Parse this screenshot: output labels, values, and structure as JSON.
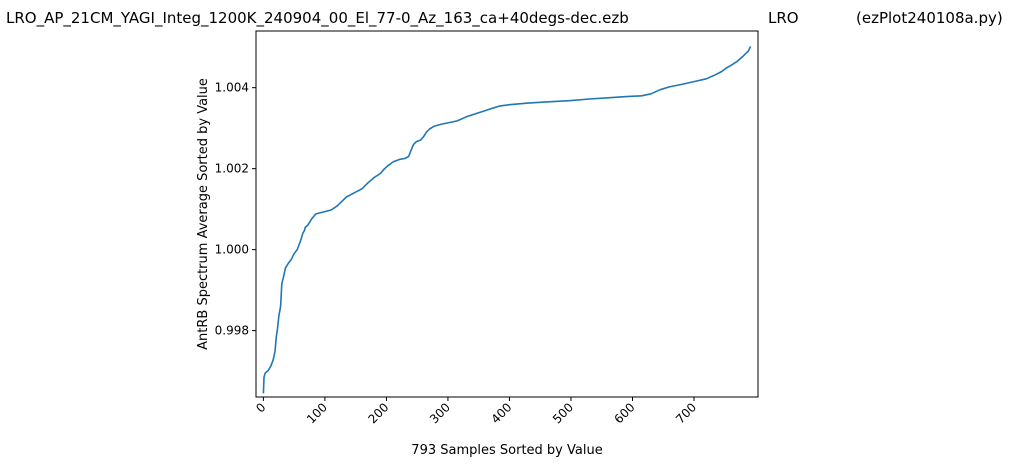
{
  "header": {
    "left": "LRO_AP_21CM_YAGI_Integ_1200K_240904_00_El_77-0_Az_163_ca+40degs-dec.ezb",
    "center": "LRO",
    "right": "(ezPlot240108a.py)"
  },
  "chart_data": {
    "type": "line",
    "title": "",
    "xlabel": "793 Samples Sorted by Value",
    "ylabel": "AntRB Spectrum Average Sorted by Value",
    "xlim": [
      -12,
      804
    ],
    "ylim": [
      0.99636,
      1.0054
    ],
    "xticks": [
      0,
      100,
      200,
      300,
      400,
      500,
      600,
      700
    ],
    "xtick_labels": [
      "0",
      "100",
      "200",
      "300",
      "400",
      "500",
      "600",
      "700"
    ],
    "yticks": [
      0.998,
      1.0,
      1.002,
      1.004
    ],
    "ytick_labels": [
      "0.998",
      "1.000",
      "1.002",
      "1.004"
    ],
    "grid": false,
    "colors": {
      "line": "#1f77b4"
    },
    "series": [
      {
        "x": [
          0,
          1,
          3,
          8,
          12,
          16,
          19,
          21,
          23,
          25,
          28,
          30,
          33,
          36,
          40,
          45,
          50,
          55,
          60,
          64,
          67,
          68,
          72,
          78,
          85,
          95,
          110,
          120,
          135,
          150,
          160,
          170,
          180,
          190,
          197,
          203,
          207,
          210,
          213,
          216,
          222,
          230,
          236,
          240,
          244,
          249,
          255,
          260,
          265,
          270,
          278,
          290,
          300,
          315,
          330,
          350,
          370,
          385,
          400,
          430,
          460,
          500,
          530,
          560,
          590,
          615,
          630,
          645,
          660,
          680,
          700,
          720,
          735,
          745,
          752,
          760,
          770,
          780,
          788,
          792
        ],
        "y": [
          0.99645,
          0.99685,
          0.99695,
          0.99702,
          0.99712,
          0.99728,
          0.9975,
          0.99785,
          0.99805,
          0.99835,
          0.9986,
          0.99915,
          0.99935,
          0.99955,
          0.99965,
          0.99975,
          0.9999,
          1.0,
          1.0002,
          1.0004,
          1.00048,
          1.00055,
          1.0006,
          1.00075,
          1.00088,
          1.00092,
          1.00098,
          1.00108,
          1.0013,
          1.00142,
          1.0015,
          1.00165,
          1.00178,
          1.00188,
          1.002,
          1.00208,
          1.00212,
          1.00216,
          1.00218,
          1.0022,
          1.00223,
          1.00225,
          1.0023,
          1.00245,
          1.0026,
          1.00267,
          1.0027,
          1.00278,
          1.0029,
          1.00298,
          1.00305,
          1.0031,
          1.00313,
          1.00318,
          1.00328,
          1.00338,
          1.00348,
          1.00355,
          1.00358,
          1.00362,
          1.00365,
          1.00368,
          1.00372,
          1.00375,
          1.00378,
          1.0038,
          1.00385,
          1.00395,
          1.00402,
          1.00408,
          1.00415,
          1.00422,
          1.00432,
          1.0044,
          1.00448,
          1.00455,
          1.00465,
          1.00478,
          1.0049,
          1.00502
        ]
      }
    ]
  }
}
